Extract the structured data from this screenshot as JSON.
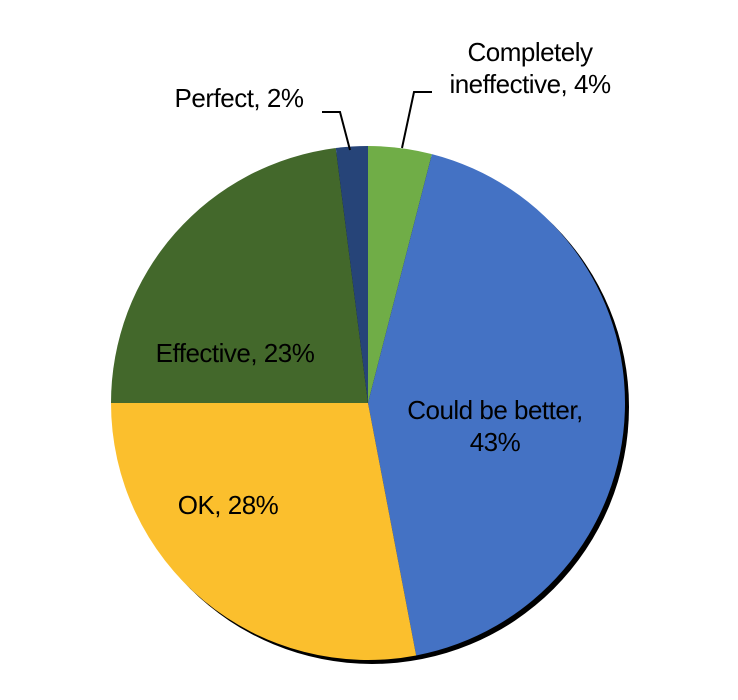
{
  "chart_data": {
    "type": "pie",
    "labels": [
      [
        "Completely",
        "ineffective, 4%"
      ],
      [
        "Could be better,",
        "43%"
      ],
      [
        "OK, 28%"
      ],
      [
        "Effective, 23%"
      ],
      [
        "Perfect, 2%"
      ]
    ],
    "values": [
      4,
      43,
      28,
      23,
      2
    ],
    "colors": [
      "#70ad47",
      "#4472c4",
      "#fbbf2d",
      "#43682b",
      "#264478"
    ]
  }
}
